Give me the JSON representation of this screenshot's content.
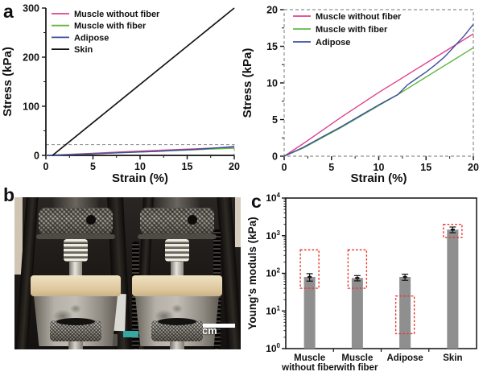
{
  "panels": {
    "a": "a",
    "b": "b",
    "c": "c"
  },
  "photo": {
    "scale_bar_label": "1 cm"
  },
  "chart_data": [
    {
      "id": "stress-strain-full",
      "type": "line",
      "xlabel": "Strain (%)",
      "ylabel": "Stress (kPa)",
      "xlim": [
        0,
        20
      ],
      "ylim": [
        0,
        300
      ],
      "xticks": [
        0,
        5,
        10,
        15,
        20
      ],
      "yticks": [
        0,
        100,
        200,
        300
      ],
      "frame": "open",
      "legend_position": "top-left",
      "zoom_box": {
        "x0": 0,
        "y0": 0,
        "x1": 20,
        "y1": 22
      },
      "series": [
        {
          "name": "Muscle without fiber",
          "color": "#E1418F",
          "x": [
            0,
            2,
            4,
            6,
            8,
            10,
            12,
            14,
            16,
            18,
            20
          ],
          "y": [
            0,
            1.7,
            3.5,
            5.3,
            7.0,
            8.7,
            10.3,
            11.9,
            13.5,
            15.1,
            16.7
          ]
        },
        {
          "name": "Muscle with fiber",
          "color": "#62B845",
          "x": [
            0,
            2,
            4,
            6,
            8,
            10,
            12,
            14,
            16,
            18,
            20
          ],
          "y": [
            0,
            1.1,
            2.5,
            3.9,
            5.4,
            6.9,
            8.4,
            10.0,
            11.6,
            13.2,
            14.8
          ]
        },
        {
          "name": "Adipose",
          "color": "#3C4F9F",
          "x": [
            0,
            2,
            4,
            6,
            8,
            10,
            11,
            12,
            13,
            14,
            15,
            16,
            17,
            18,
            19,
            20
          ],
          "y": [
            0,
            1.2,
            2.6,
            4.0,
            5.5,
            7.0,
            7.7,
            8.4,
            9.7,
            10.6,
            11.5,
            12.5,
            13.6,
            15.0,
            16.4,
            18.0
          ]
        },
        {
          "name": "Skin",
          "color": "#151515",
          "width": 1.7,
          "x": [
            0.7,
            20
          ],
          "y": [
            0,
            300
          ]
        }
      ]
    },
    {
      "id": "stress-strain-zoom",
      "type": "line",
      "xlabel": "Strain (%)",
      "ylabel": "Stress (kPa)",
      "xlim": [
        0,
        20
      ],
      "ylim": [
        0,
        20
      ],
      "xticks": [
        0,
        5,
        10,
        15,
        20
      ],
      "yticks": [
        0,
        5,
        10,
        15,
        20
      ],
      "frame": "dashed",
      "legend_position": "top-left",
      "series": [
        {
          "name": "Muscle without fiber",
          "color": "#E1418F",
          "x": [
            0,
            2,
            4,
            6,
            8,
            10,
            12,
            14,
            16,
            18,
            20
          ],
          "y": [
            0,
            1.7,
            3.5,
            5.3,
            7.0,
            8.7,
            10.3,
            11.9,
            13.5,
            15.1,
            16.7
          ]
        },
        {
          "name": "Muscle with fiber",
          "color": "#62B845",
          "x": [
            0,
            2,
            4,
            6,
            8,
            10,
            12,
            14,
            16,
            18,
            20
          ],
          "y": [
            0,
            1.1,
            2.5,
            3.9,
            5.4,
            6.9,
            8.4,
            10.0,
            11.6,
            13.2,
            14.8
          ]
        },
        {
          "name": "Adipose",
          "color": "#3C4F9F",
          "x": [
            0,
            2,
            4,
            6,
            8,
            10,
            11,
            12,
            13,
            14,
            15,
            16,
            17,
            18,
            19,
            20
          ],
          "y": [
            0,
            1.2,
            2.6,
            4.0,
            5.5,
            7.0,
            7.7,
            8.4,
            9.7,
            10.6,
            11.5,
            12.5,
            13.6,
            15.0,
            16.4,
            18.0
          ]
        }
      ]
    },
    {
      "id": "youngs-modulus",
      "type": "bar",
      "ylabel": "Young's moduls (kPa)",
      "yscale": "log",
      "ylim": [
        1,
        10000
      ],
      "ytick_exponents": [
        0,
        1,
        2,
        3,
        4
      ],
      "categories": [
        "Muscle\nwithout fiber",
        "Muscle\nwith fiber",
        "Adipose",
        "Skin"
      ],
      "values": [
        80,
        75,
        80,
        1450
      ],
      "errors": [
        18,
        12,
        15,
        250
      ],
      "reference_ranges": [
        [
          40,
          420
        ],
        [
          40,
          420
        ],
        [
          2.5,
          25
        ],
        [
          900,
          2000
        ]
      ],
      "bar_color": "#8F8F8F",
      "error_color": "#111111",
      "reference_color": "#E8362D"
    }
  ]
}
